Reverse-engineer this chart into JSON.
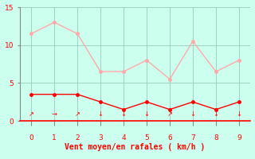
{
  "x": [
    0,
    1,
    2,
    3,
    4,
    5,
    6,
    7,
    8,
    9
  ],
  "rafales": [
    11.5,
    13.0,
    11.5,
    6.5,
    6.5,
    8.0,
    5.5,
    10.5,
    6.5,
    8.0
  ],
  "moyen": [
    3.5,
    3.5,
    3.5,
    2.5,
    1.5,
    2.5,
    1.5,
    2.5,
    1.5,
    2.5
  ],
  "wind_arrows": [
    "↗",
    "→",
    "↗",
    "↓",
    "↓",
    "↓",
    "↗",
    "↓",
    "↓",
    "↓"
  ],
  "xlabel": "Vent moyen/en rafales ( km/h )",
  "xlim": [
    -0.5,
    9.5
  ],
  "ylim": [
    0,
    15
  ],
  "yticks": [
    0,
    5,
    10,
    15
  ],
  "xticks": [
    0,
    1,
    2,
    3,
    4,
    5,
    6,
    7,
    8,
    9
  ],
  "color_rafales": "#ffaaaa",
  "color_moyen": "#ff0000",
  "bg_color": "#ccffee",
  "grid_color": "#99ccbb",
  "text_color": "#ff0000",
  "spine_color": "#888888",
  "font_size_label": 7,
  "font_size_tick": 6.5,
  "font_size_arrow": 6,
  "marker_size": 2.5,
  "line_width": 1.0
}
